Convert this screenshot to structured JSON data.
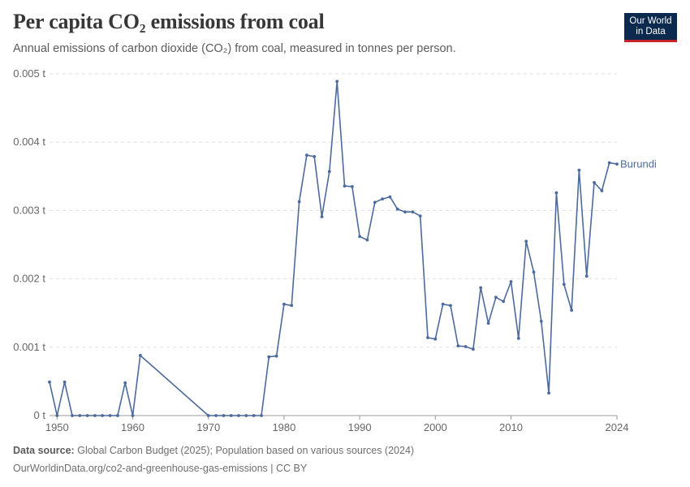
{
  "header": {
    "title": "Per capita CO₂ emissions from coal",
    "subtitle": "Annual emissions of carbon dioxide (CO₂) from coal, measured in tonnes per person."
  },
  "logo": {
    "line1": "Our World",
    "line2": "in Data"
  },
  "footer": {
    "source_label": "Data source:",
    "source_text": "Global Carbon Budget (2025); Population based on various sources (2024)",
    "url_text": "OurWorldinData.org/co2-and-greenhouse-gas-emissions | CC BY"
  },
  "colors": {
    "series": "#4c6a9c",
    "grid": "#dddddd",
    "axis_text": "#666666",
    "logo_bg": "#0b2a4d",
    "logo_accent": "#c8232c"
  },
  "chart_data": {
    "type": "line",
    "title": "Per capita CO₂ emissions from coal",
    "ylim": [
      0,
      0.005
    ],
    "xlim": [
      1949,
      2024
    ],
    "yticks": [
      0,
      0.001,
      0.002,
      0.003,
      0.004,
      0.005
    ],
    "ytick_labels": [
      "0 t",
      "0.001 t",
      "0.002 t",
      "0.003 t",
      "0.004 t",
      "0.005 t"
    ],
    "xticks": [
      1950,
      1960,
      1970,
      1980,
      1990,
      2000,
      2010,
      2024
    ],
    "xtick_labels": [
      "1950",
      "1960",
      "1970",
      "1980",
      "1990",
      "2000",
      "2010",
      "2024"
    ],
    "grid": "horizontal dashed",
    "legend": "label at end of line",
    "series": [
      {
        "name": "Burundi",
        "x": [
          1949,
          1950,
          1951,
          1952,
          1953,
          1954,
          1955,
          1956,
          1957,
          1958,
          1959,
          1960,
          1961,
          1970,
          1971,
          1972,
          1973,
          1974,
          1975,
          1976,
          1977,
          1978,
          1979,
          1980,
          1981,
          1982,
          1983,
          1984,
          1985,
          1986,
          1987,
          1988,
          1989,
          1990,
          1991,
          1992,
          1993,
          1994,
          1995,
          1996,
          1997,
          1998,
          1999,
          2000,
          2001,
          2002,
          2003,
          2004,
          2005,
          2006,
          2007,
          2008,
          2009,
          2010,
          2011,
          2012,
          2013,
          2014,
          2015,
          2016,
          2017,
          2018,
          2019,
          2020,
          2021,
          2022,
          2023,
          2024
        ],
        "y": [
          0.00049,
          0,
          0.00049,
          0,
          0,
          0,
          0,
          0,
          0,
          0,
          0.00048,
          0,
          0.00088,
          0,
          0,
          0,
          0,
          0,
          0,
          0,
          0,
          0.00086,
          0.00087,
          0.00163,
          0.00161,
          0.00313,
          0.00381,
          0.00379,
          0.00291,
          0.00357,
          0.00489,
          0.00336,
          0.00335,
          0.00262,
          0.00257,
          0.00312,
          0.00317,
          0.0032,
          0.00302,
          0.00298,
          0.00298,
          0.00292,
          0.00114,
          0.00112,
          0.00163,
          0.00161,
          0.00102,
          0.00101,
          0.00097,
          0.00187,
          0.00135,
          0.00173,
          0.00167,
          0.00196,
          0.00113,
          0.00255,
          0.0021,
          0.00138,
          0.00033,
          0.00326,
          0.00192,
          0.00154,
          0.00359,
          0.00204,
          0.00341,
          0.00329,
          0.0037,
          0.00368
        ]
      }
    ]
  }
}
